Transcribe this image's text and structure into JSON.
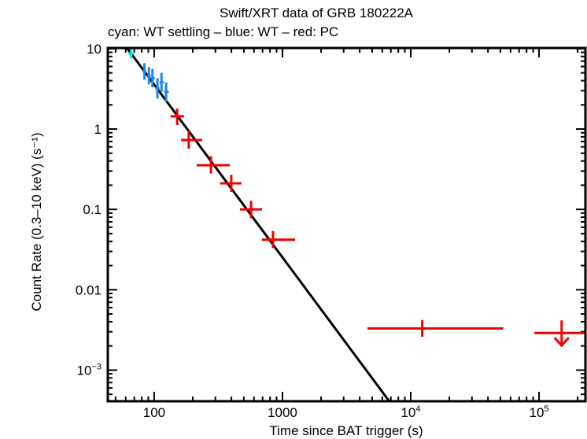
{
  "chart_data": {
    "type": "scatter",
    "title": "Swift/XRT data of GRB 180222A",
    "subtitle": "cyan: WT settling – blue: WT – red: PC",
    "xlabel": "Time since BAT trigger (s)",
    "ylabel": "Count Rate (0.3–10 keV) (s⁻¹)",
    "xscale": "log",
    "yscale": "log",
    "xlim": [
      43.5,
      230000
    ],
    "ylim": [
      0.00041,
      10.2
    ],
    "x_ticks": [
      {
        "value": 100,
        "label": "100"
      },
      {
        "value": 1000,
        "label": "1000"
      },
      {
        "value": 10000,
        "label": "10",
        "sup": "4"
      },
      {
        "value": 100000,
        "label": "10",
        "sup": "5"
      }
    ],
    "y_ticks": [
      {
        "value": 10,
        "label": "10"
      },
      {
        "value": 1,
        "label": "1"
      },
      {
        "value": 0.1,
        "label": "0.1"
      },
      {
        "value": 0.01,
        "label": "0.01"
      },
      {
        "value": 0.001,
        "label": "10",
        "sup": "−3"
      }
    ],
    "grid": false,
    "series": [
      {
        "name": "WT settling",
        "color": "#00e0f0",
        "points": [
          {
            "t": 66,
            "t_lo": 63,
            "t_hi": 70,
            "rate": 8.7,
            "r_lo": 7.6,
            "r_hi": 10.0
          }
        ]
      },
      {
        "name": "WT",
        "color": "#1a86f0",
        "points": [
          {
            "t": 84,
            "t_lo": 81,
            "t_hi": 87,
            "rate": 5.2,
            "r_lo": 4.1,
            "r_hi": 6.6
          },
          {
            "t": 91,
            "t_lo": 88,
            "t_hi": 94,
            "rate": 4.6,
            "r_lo": 3.6,
            "r_hi": 5.9
          },
          {
            "t": 97,
            "t_lo": 94,
            "t_hi": 101,
            "rate": 4.3,
            "r_lo": 3.3,
            "r_hi": 5.6
          },
          {
            "t": 106,
            "t_lo": 102,
            "t_hi": 110,
            "rate": 3.2,
            "r_lo": 2.4,
            "r_hi": 4.3
          },
          {
            "t": 114,
            "t_lo": 110,
            "t_hi": 119,
            "rate": 3.8,
            "r_lo": 2.9,
            "r_hi": 5.0
          },
          {
            "t": 124,
            "t_lo": 119,
            "t_hi": 130,
            "rate": 2.9,
            "r_lo": 2.2,
            "r_hi": 3.8
          }
        ]
      },
      {
        "name": "PC",
        "color": "#f00000",
        "points": [
          {
            "t": 151,
            "t_lo": 134,
            "t_hi": 171,
            "rate": 1.44,
            "r_lo": 1.12,
            "r_hi": 1.8
          },
          {
            "t": 186,
            "t_lo": 162,
            "t_hi": 237,
            "rate": 0.73,
            "r_lo": 0.57,
            "r_hi": 0.95
          },
          {
            "t": 277,
            "t_lo": 214,
            "t_hi": 388,
            "rate": 0.355,
            "r_lo": 0.28,
            "r_hi": 0.46
          },
          {
            "t": 399,
            "t_lo": 327,
            "t_hi": 479,
            "rate": 0.211,
            "r_lo": 0.165,
            "r_hi": 0.27
          },
          {
            "t": 569,
            "t_lo": 466,
            "t_hi": 693,
            "rate": 0.1,
            "r_lo": 0.078,
            "r_hi": 0.128
          },
          {
            "t": 844,
            "t_lo": 691,
            "t_hi": 1255,
            "rate": 0.042,
            "r_lo": 0.033,
            "r_hi": 0.054
          },
          {
            "t": 12300,
            "t_lo": 4600,
            "t_hi": 52700,
            "rate": 0.0033,
            "r_lo": 0.0026,
            "r_hi": 0.0042
          }
        ],
        "upper_limits": [
          {
            "t": 150000,
            "t_lo": 92000,
            "t_hi": 230000,
            "rate": 0.0029
          }
        ]
      }
    ],
    "model_line": {
      "name": "power-law fit",
      "color": "#000000",
      "points": [
        {
          "t": 62,
          "rate": 10.0
        },
        {
          "t": 6800,
          "rate": 0.00041
        }
      ]
    }
  }
}
